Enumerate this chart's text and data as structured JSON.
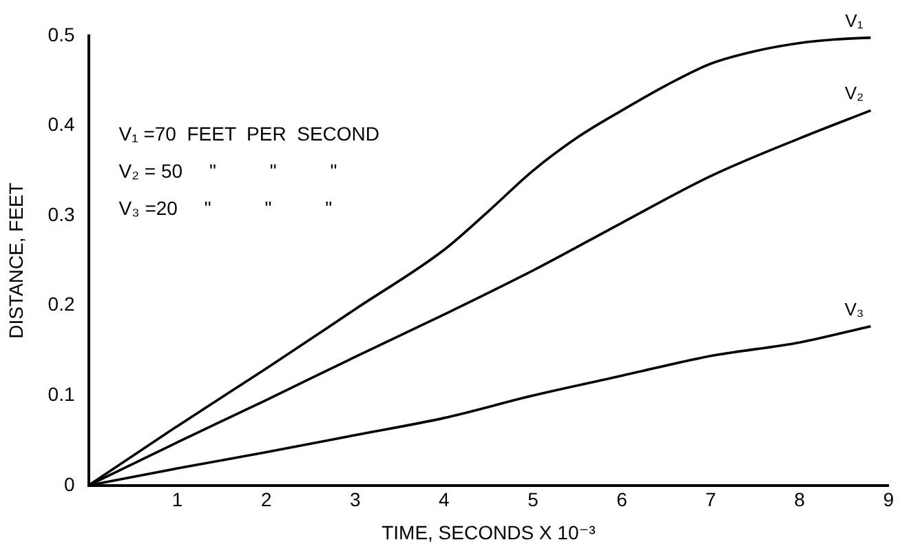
{
  "chart_data": {
    "type": "line",
    "xlabel": "TIME, SECONDS X 10⁻³",
    "ylabel": "DISTANCE, FEET",
    "xlim": [
      0,
      9
    ],
    "xticks": [
      1,
      2,
      3,
      4,
      5,
      6,
      7,
      8,
      9
    ],
    "ylim": [
      0,
      0.5
    ],
    "yticks": [
      0,
      0.1,
      0.2,
      0.3,
      0.4,
      0.5
    ],
    "grid": false,
    "legend": false,
    "marker": "none",
    "line_style": "solid",
    "annotations": [
      "V₁ =70  FEET  PER  SECOND",
      "V₂ = 50     \"          \"          \"",
      "V₃ =20     \"          \"          \""
    ],
    "series": [
      {
        "name": "V₁",
        "color": "#000000",
        "x": [
          0,
          1,
          2,
          3,
          4,
          4.5,
          5,
          5.5,
          6,
          6.5,
          7,
          7.5,
          8,
          8.4,
          8.8
        ],
        "values": [
          0,
          0.066,
          0.13,
          0.196,
          0.262,
          0.305,
          0.35,
          0.387,
          0.417,
          0.445,
          0.469,
          0.483,
          0.492,
          0.496,
          0.498
        ]
      },
      {
        "name": "V₂",
        "color": "#000000",
        "x": [
          0,
          1,
          2,
          3,
          4,
          5,
          6,
          7,
          8,
          8.8
        ],
        "values": [
          0,
          0.048,
          0.095,
          0.143,
          0.19,
          0.239,
          0.292,
          0.344,
          0.386,
          0.417
        ]
      },
      {
        "name": "V₃",
        "color": "#000000",
        "x": [
          0,
          1,
          2,
          3,
          4,
          5,
          6,
          7,
          8,
          8.8
        ],
        "values": [
          0,
          0.019,
          0.037,
          0.056,
          0.075,
          0.1,
          0.122,
          0.144,
          0.159,
          0.177
        ]
      }
    ]
  }
}
